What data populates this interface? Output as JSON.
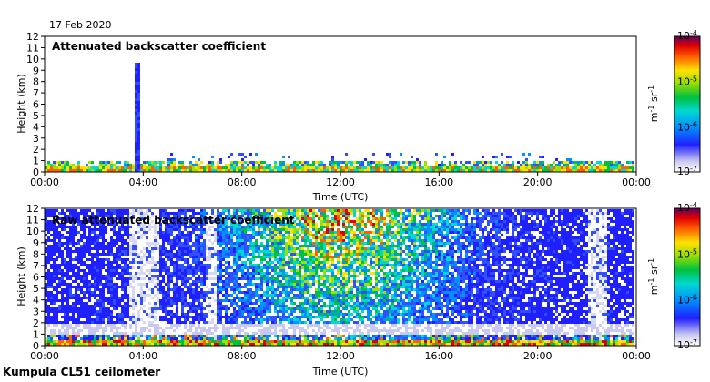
{
  "date": "17 Feb 2020",
  "footer": "Kumpula CL51 ceilometer",
  "chart_data": [
    {
      "type": "heatmap",
      "title": "Attenuated backscatter coefficient",
      "xlabel": "Time (UTC)",
      "ylabel": "Height (km)",
      "x_ticks": [
        "00:00",
        "04:00",
        "08:00",
        "12:00",
        "16:00",
        "20:00",
        "00:00"
      ],
      "y_ticks": [
        0,
        1,
        2,
        3,
        4,
        5,
        6,
        7,
        8,
        9,
        10,
        11,
        12
      ],
      "ylim": [
        0,
        12
      ],
      "colorbar": {
        "scale": "log",
        "label": "m-1 sr-1",
        "range": [
          1e-07,
          0.0001
        ],
        "tick_labels": [
          "10-4",
          "10-5",
          "10-6",
          "10-7"
        ]
      }
    },
    {
      "type": "heatmap",
      "title": "Raw attenuated backscatter coefficient",
      "xlabel": "Time (UTC)",
      "ylabel": "Height (km)",
      "x_ticks": [
        "00:00",
        "04:00",
        "08:00",
        "12:00",
        "16:00",
        "20:00",
        "00:00"
      ],
      "y_ticks": [
        0,
        1,
        2,
        3,
        4,
        5,
        6,
        7,
        8,
        9,
        10,
        11,
        12
      ],
      "ylim": [
        0,
        12
      ],
      "colorbar": {
        "scale": "log",
        "label": "m-1 sr-1",
        "range": [
          1e-07,
          0.0001
        ],
        "tick_labels": [
          "10-4",
          "10-5",
          "10-6",
          "10-7"
        ]
      }
    }
  ]
}
